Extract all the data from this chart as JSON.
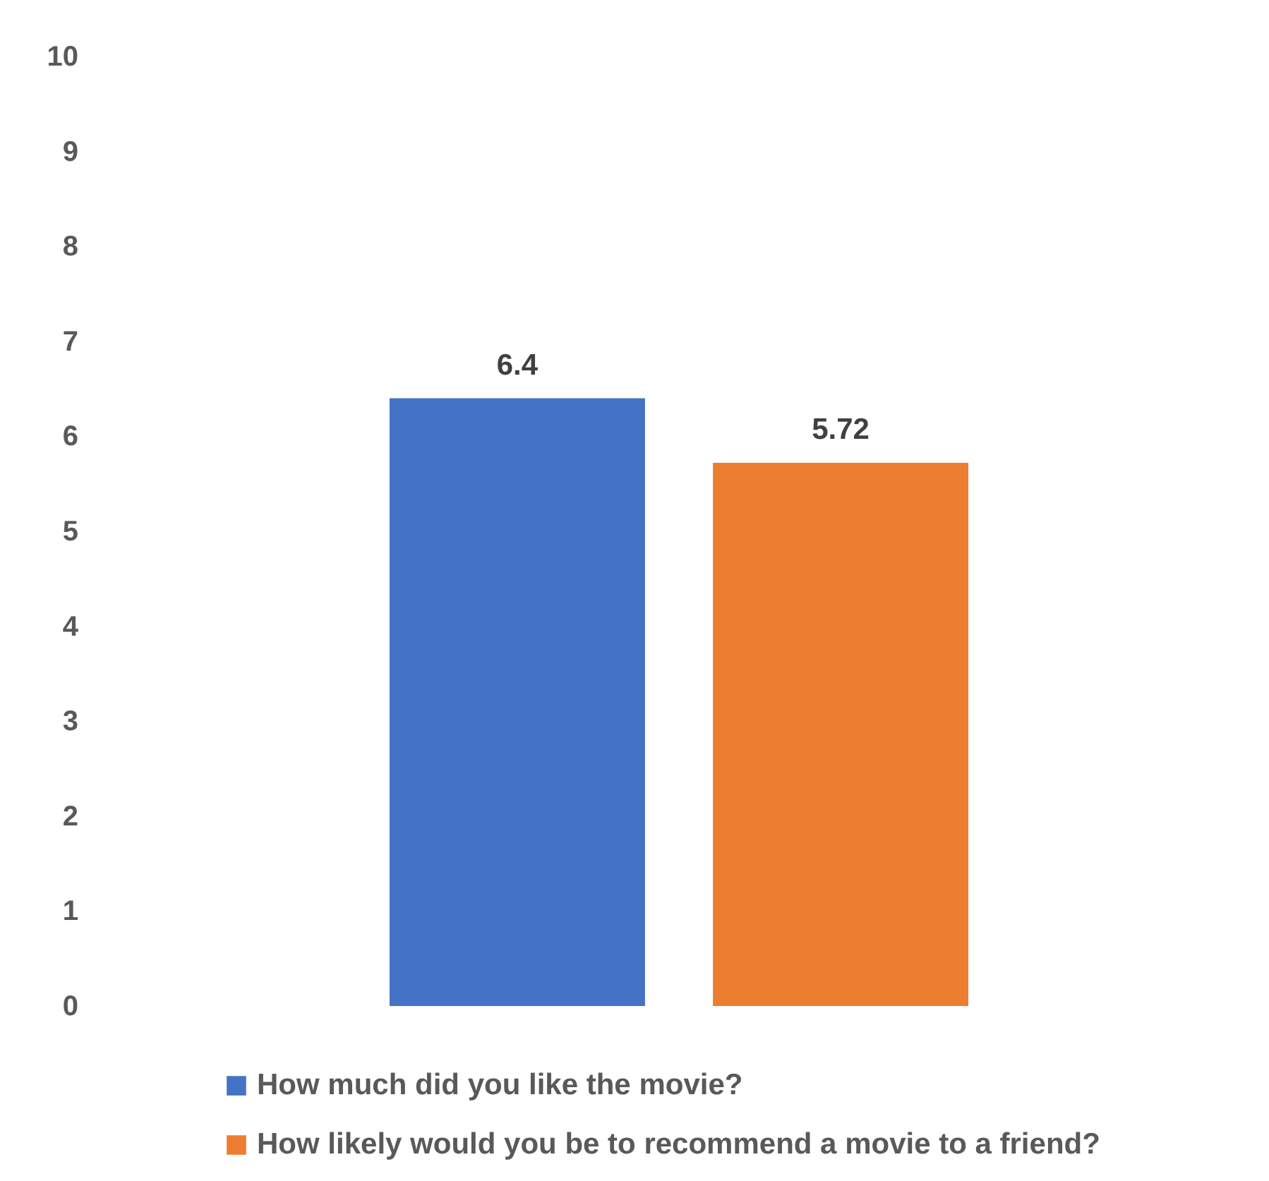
{
  "chart_data": {
    "type": "bar",
    "categories": [
      null
    ],
    "series": [
      {
        "name": "How much did you like the movie?",
        "color": "#4472c4",
        "values": [
          6.4
        ]
      },
      {
        "name": "How likely would you be to recommend a movie to a friend?",
        "color": "#ed7d31",
        "values": [
          5.72
        ]
      }
    ],
    "ylim": [
      0,
      10
    ],
    "yticks": [
      0,
      1,
      2,
      3,
      4,
      5,
      6,
      7,
      8,
      9,
      10
    ],
    "grid": false,
    "legend": "bottom",
    "data_labels": true,
    "tick_labels": "y"
  }
}
